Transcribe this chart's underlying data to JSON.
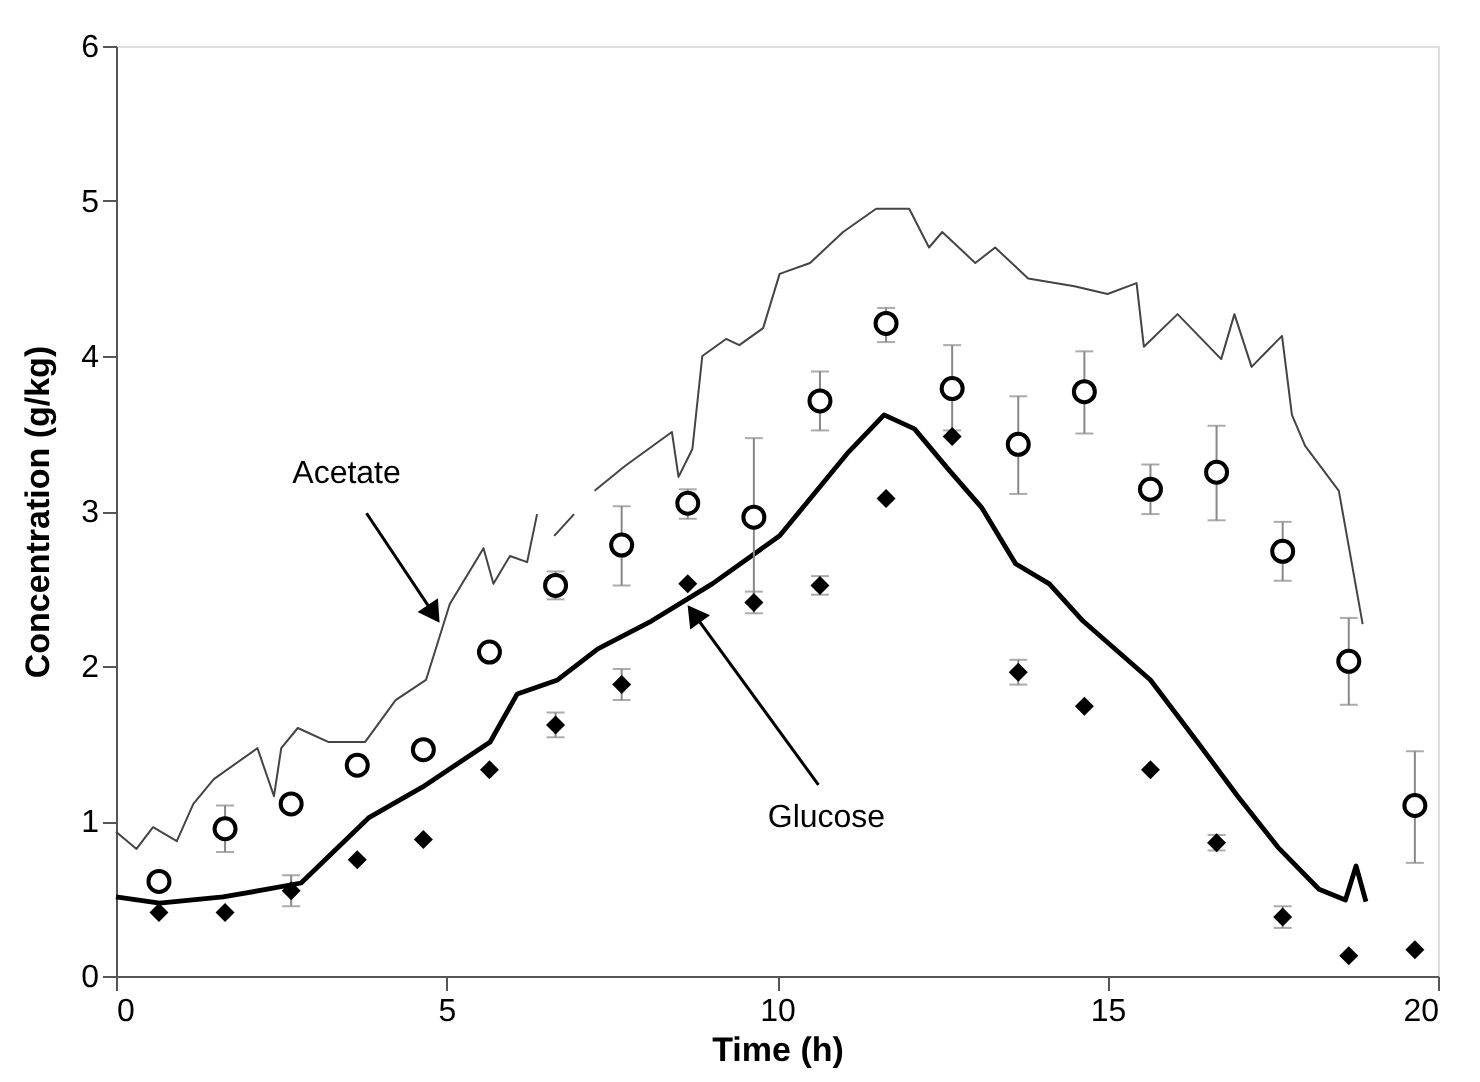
{
  "chart_data": {
    "type": "line",
    "xlabel": "Time (h)",
    "ylabel": "Concentration (g/kg)",
    "xlim": [
      0,
      20
    ],
    "xticks": [
      0,
      5,
      10,
      15,
      20
    ],
    "ylim": [
      0,
      6
    ],
    "yticks": [
      0,
      1,
      2,
      3,
      4,
      5,
      6
    ],
    "grid": false,
    "annotations": [
      {
        "text": "Acetate",
        "x": 4.94,
        "y": 2.25
      },
      {
        "text": "Glucose",
        "x": 8.6,
        "y": 2.42
      }
    ],
    "series": [
      {
        "color": "#444444",
        "x": [
          0,
          0.31,
          0.56,
          0.92,
          1.17,
          1.48,
          2.14,
          2.39,
          2.5,
          2.75,
          3.21,
          3.77,
          4.23,
          4.69,
          5.05,
          5.56,
          5.71,
          5.96,
          6.22,
          6.37,
          6.5,
          6.63,
          6.93,
          7.1,
          7.24,
          7.7,
          8.41,
          8.51,
          8.72,
          8.87,
          9.23,
          9.43,
          9.79,
          10.04,
          10.5,
          11.0,
          11.5,
          12.0,
          12.3,
          12.5,
          13.0,
          13.3,
          13.8,
          14.5,
          15.0,
          15.44,
          15.55,
          16.06,
          16.72,
          16.92,
          17.18,
          17.64,
          17.79,
          17.99,
          18.5,
          18.86
        ],
        "values": [
          0.93,
          0.82,
          0.96,
          0.87,
          1.11,
          1.27,
          1.47,
          1.16,
          1.47,
          1.6,
          1.51,
          1.51,
          1.78,
          1.91,
          2.4,
          2.76,
          2.53,
          2.71,
          2.67,
          2.98,
          null,
          2.84,
          2.98,
          null,
          3.13,
          3.29,
          3.51,
          3.22,
          3.4,
          4.0,
          4.11,
          4.07,
          4.18,
          4.53,
          4.6,
          4.8,
          4.95,
          4.95,
          4.7,
          4.8,
          4.6,
          4.7,
          4.5,
          4.45,
          4.4,
          4.47,
          4.06,
          4.27,
          3.98,
          4.27,
          3.93,
          4.13,
          3.62,
          3.42,
          3.13,
          2.27
        ]
      },
      {
        "color": "#000000",
        "x": [
          0,
          0.66,
          1.62,
          2.29,
          2.8,
          3.82,
          4.64,
          5.66,
          6.07,
          6.68,
          7.29,
          8.1,
          9.02,
          10.04,
          11.06,
          11.62,
          12.08,
          12.59,
          13.1,
          13.61,
          14.12,
          14.63,
          15.65,
          16.36,
          16.97,
          17.58,
          18.2,
          18.6,
          18.76,
          18.91
        ],
        "values": [
          0.51,
          0.47,
          0.51,
          0.56,
          0.6,
          1.02,
          1.22,
          1.51,
          1.82,
          1.91,
          2.11,
          2.29,
          2.53,
          2.84,
          3.37,
          3.62,
          3.53,
          3.27,
          3.02,
          2.66,
          2.53,
          2.29,
          1.91,
          1.51,
          1.16,
          0.83,
          0.56,
          0.49,
          0.71,
          0.48
        ]
      },
      {
        "type": "scatter",
        "marker": "circle",
        "color": "#000000",
        "x": [
          0.65,
          1.65,
          2.65,
          3.65,
          4.65,
          5.65,
          6.65,
          7.65,
          8.65,
          9.65,
          10.65,
          11.65,
          12.65,
          13.65,
          14.65,
          15.65,
          16.65,
          17.65,
          18.65,
          19.65
        ],
        "values": [
          0.61,
          0.95,
          1.11,
          1.36,
          1.46,
          2.09,
          2.52,
          2.78,
          3.05,
          2.96,
          3.71,
          4.21,
          3.79,
          3.43,
          3.77,
          3.14,
          3.25,
          2.74,
          2.03,
          1.1
        ],
        "errors": [
          null,
          [
            0.8,
            1.1
          ],
          null,
          null,
          null,
          null,
          [
            2.43,
            2.61
          ],
          [
            2.52,
            3.03
          ],
          [
            2.95,
            3.14
          ],
          [
            2.41,
            3.47
          ],
          [
            3.52,
            3.9
          ],
          [
            4.09,
            4.31
          ],
          [
            3.52,
            4.07
          ],
          [
            3.11,
            3.74
          ],
          [
            3.5,
            4.03
          ],
          [
            2.98,
            3.3
          ],
          [
            2.94,
            3.55
          ],
          [
            2.55,
            2.93
          ],
          [
            1.75,
            2.31
          ],
          [
            0.73,
            1.45
          ]
        ]
      },
      {
        "type": "scatter",
        "marker": "diamond",
        "color": "#000000",
        "x": [
          0.65,
          1.65,
          2.65,
          3.65,
          4.65,
          5.65,
          6.65,
          7.65,
          8.65,
          9.65,
          10.65,
          11.65,
          12.65,
          13.65,
          14.65,
          15.65,
          16.65,
          17.65,
          18.65,
          19.65
        ],
        "values": [
          0.41,
          0.41,
          0.55,
          0.75,
          0.88,
          1.33,
          1.62,
          1.88,
          2.53,
          2.41,
          2.52,
          3.08,
          3.48,
          1.96,
          1.74,
          1.33,
          0.86,
          0.38,
          0.13,
          0.17
        ],
        "errors": [
          null,
          null,
          0.1,
          null,
          null,
          null,
          0.08,
          0.1,
          null,
          0.07,
          0.06,
          null,
          null,
          0.08,
          null,
          null,
          0.05,
          0.07,
          null,
          null
        ]
      }
    ]
  }
}
